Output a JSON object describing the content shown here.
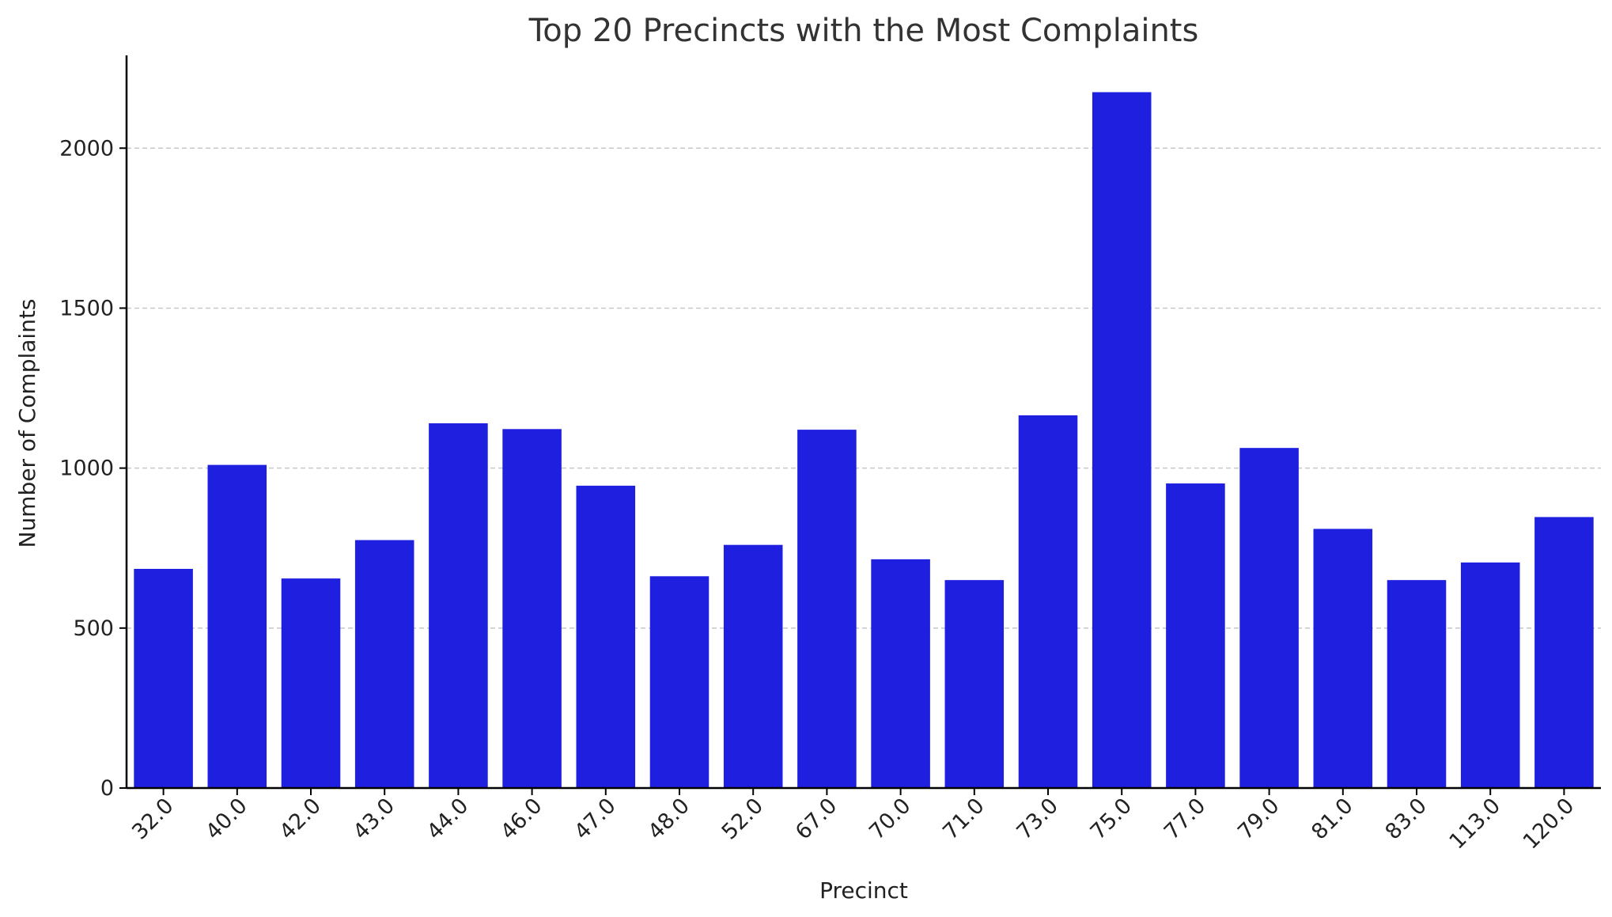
{
  "chart_data": {
    "type": "bar",
    "title": "Top 20 Precincts with the Most Complaints",
    "xlabel": "Precinct",
    "ylabel": "Number of Complaints",
    "categories": [
      "32.0",
      "40.0",
      "42.0",
      "43.0",
      "44.0",
      "46.0",
      "47.0",
      "48.0",
      "52.0",
      "67.0",
      "70.0",
      "71.0",
      "73.0",
      "75.0",
      "77.0",
      "79.0",
      "81.0",
      "83.0",
      "113.0",
      "120.0"
    ],
    "values": [
      685,
      1010,
      655,
      775,
      1140,
      1122,
      945,
      662,
      760,
      1120,
      715,
      650,
      1165,
      2175,
      952,
      1063,
      810,
      650,
      705,
      847
    ],
    "ylim": [
      0,
      2290
    ],
    "yticks": [
      0,
      500,
      1000,
      1500,
      2000
    ],
    "grid": "y-dashed",
    "legend": "none",
    "bar_color": "#1f1fe0"
  }
}
